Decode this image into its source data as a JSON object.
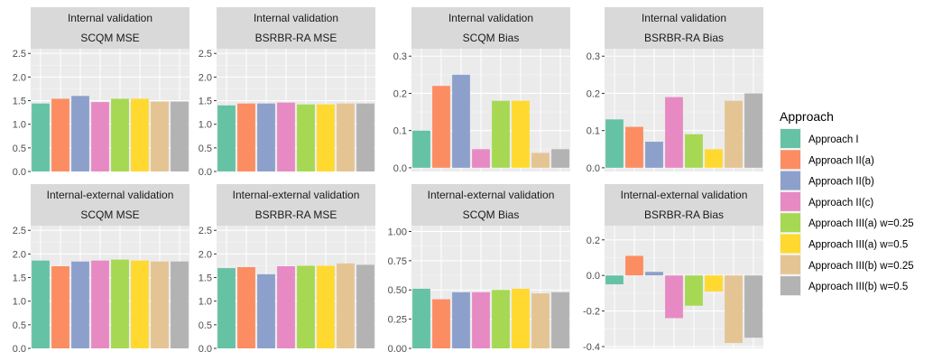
{
  "chart_data": {
    "type": "bar",
    "legend": {
      "title": "Approach",
      "position": "right",
      "entries": [
        {
          "label": "Approach I",
          "color": "#66c2a5"
        },
        {
          "label": "Approach II(a)",
          "color": "#fc8d62"
        },
        {
          "label": "Approach II(b)",
          "color": "#8da0cb"
        },
        {
          "label": "Approach II(c)",
          "color": "#e78ac3"
        },
        {
          "label": "Approach III(a) w=0.25",
          "color": "#a6d854"
        },
        {
          "label": "Approach III(a) w=0.5",
          "color": "#ffd92f"
        },
        {
          "label": "Approach III(b) w=0.25",
          "color": "#e5c494"
        },
        {
          "label": "Approach III(b) w=0.5",
          "color": "#b3b3b3"
        }
      ]
    },
    "panel_background": "#ebebeb",
    "strip_background": "#d9d9d9",
    "grid": true,
    "panels": [
      {
        "strip": [
          "Internal validation",
          "SCQM MSE"
        ],
        "ylim": [
          0,
          2.6
        ],
        "yticks": [
          "0.0",
          "0.5",
          "1.0",
          "1.5",
          "2.0",
          "2.5"
        ],
        "tick_values": [
          0,
          0.5,
          1.0,
          1.5,
          2.0,
          2.5
        ],
        "values": [
          1.44,
          1.54,
          1.6,
          1.47,
          1.54,
          1.54,
          1.48,
          1.48
        ]
      },
      {
        "strip": [
          "Internal validation",
          "BSRBR-RA MSE"
        ],
        "ylim": [
          0,
          2.6
        ],
        "yticks": [
          "0.0",
          "0.5",
          "1.0",
          "1.5",
          "2.0",
          "2.5"
        ],
        "tick_values": [
          0,
          0.5,
          1.0,
          1.5,
          2.0,
          2.5
        ],
        "values": [
          1.4,
          1.44,
          1.44,
          1.46,
          1.42,
          1.42,
          1.44,
          1.44
        ]
      },
      {
        "strip": [
          "Internal validation",
          "SCQM Bias"
        ],
        "ylim": [
          -0.01,
          0.32
        ],
        "yticks": [
          "0.0",
          "0.1",
          "0.2",
          "0.3"
        ],
        "tick_values": [
          0,
          0.1,
          0.2,
          0.3
        ],
        "values": [
          0.1,
          0.22,
          0.25,
          0.05,
          0.18,
          0.18,
          0.04,
          0.05
        ]
      },
      {
        "strip": [
          "Internal validation",
          "BSRBR-RA Bias"
        ],
        "ylim": [
          -0.01,
          0.32
        ],
        "yticks": [
          "0.0",
          "0.1",
          "0.2",
          "0.3"
        ],
        "tick_values": [
          0,
          0.1,
          0.2,
          0.3
        ],
        "values": [
          0.13,
          0.11,
          0.07,
          0.19,
          0.09,
          0.05,
          0.18,
          0.2
        ]
      },
      {
        "strip": [
          "Internal-external validation",
          "SCQM MSE"
        ],
        "ylim": [
          0,
          2.6
        ],
        "yticks": [
          "0.0",
          "0.5",
          "1.0",
          "1.5",
          "2.0",
          "2.5"
        ],
        "tick_values": [
          0,
          0.5,
          1.0,
          1.5,
          2.0,
          2.5
        ],
        "values": [
          1.86,
          1.74,
          1.84,
          1.86,
          1.88,
          1.86,
          1.84,
          1.84
        ]
      },
      {
        "strip": [
          "Internal-external validation",
          "BSRBR-RA MSE"
        ],
        "ylim": [
          0,
          2.6
        ],
        "yticks": [
          "0.0",
          "0.5",
          "1.0",
          "1.5",
          "2.0",
          "2.5"
        ],
        "tick_values": [
          0,
          0.5,
          1.0,
          1.5,
          2.0,
          2.5
        ],
        "values": [
          1.7,
          1.72,
          1.57,
          1.74,
          1.75,
          1.75,
          1.8,
          1.77
        ]
      },
      {
        "strip": [
          "Internal-external validation",
          "SCQM Bias"
        ],
        "ylim": [
          0,
          1.05
        ],
        "yticks": [
          "0.00",
          "0.25",
          "0.50",
          "0.75",
          "1.00"
        ],
        "tick_values": [
          0,
          0.25,
          0.5,
          0.75,
          1.0
        ],
        "values": [
          0.51,
          0.42,
          0.48,
          0.48,
          0.5,
          0.51,
          0.47,
          0.48
        ]
      },
      {
        "strip": [
          "Internal-external validation",
          "BSRBR-RA Bias"
        ],
        "ylim": [
          -0.41,
          0.28
        ],
        "yticks": [
          "-0.4",
          "-0.2",
          "0.0",
          "0.2"
        ],
        "tick_values": [
          -0.4,
          -0.2,
          0,
          0.2
        ],
        "values": [
          -0.05,
          0.11,
          0.02,
          -0.24,
          -0.17,
          -0.09,
          -0.38,
          -0.35
        ]
      }
    ]
  }
}
